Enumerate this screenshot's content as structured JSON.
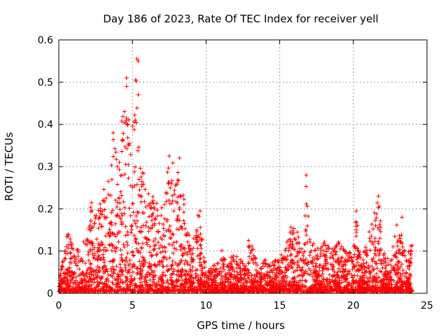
{
  "chart_data": {
    "type": "scatter",
    "title": "Day 186 of 2023, Rate Of TEC Index for receiver yell",
    "xlabel": "GPS time / hours",
    "ylabel": "ROTI / TECUs",
    "xlim": [
      0,
      25
    ],
    "ylim": [
      0,
      0.6
    ],
    "xticks": [
      0,
      5,
      10,
      15,
      20,
      25
    ],
    "yticks": [
      0,
      0.1,
      0.2,
      0.3,
      0.4,
      0.5,
      0.6
    ],
    "xtick_labels": [
      "0",
      "5",
      "10",
      "15",
      "20",
      "25"
    ],
    "ytick_labels": [
      "0",
      "0.1",
      "0.2",
      "0.3",
      "0.4",
      "0.5",
      "0.6"
    ],
    "grid": true,
    "marker": "+",
    "color": "#ff0000",
    "envelope": {
      "description": "approximate upper envelope of ROTI values per hour bin",
      "hours": [
        0,
        0.5,
        0.7,
        1,
        1.5,
        2,
        2.2,
        2.5,
        3,
        3.2,
        3.5,
        3.7,
        4,
        4.5,
        4.6,
        5,
        5.3,
        5.5,
        6,
        6.5,
        7,
        7.5,
        8,
        8.5,
        9,
        9.5,
        10,
        10.5,
        11,
        11.5,
        12,
        12.5,
        13,
        13.5,
        14,
        14.5,
        15,
        15.5,
        16,
        16.5,
        16.8,
        17,
        17.5,
        18,
        18.5,
        19,
        19.5,
        20,
        20.2,
        20.5,
        21,
        21.5,
        21.7,
        22,
        22.5,
        23,
        23.3,
        23.5,
        24
      ],
      "max_roti": [
        0.03,
        0.12,
        0.165,
        0.1,
        0.1,
        0.15,
        0.22,
        0.19,
        0.23,
        0.3,
        0.25,
        0.38,
        0.3,
        0.51,
        0.42,
        0.41,
        0.555,
        0.3,
        0.27,
        0.22,
        0.21,
        0.32,
        0.32,
        0.22,
        0.1,
        0.19,
        0.05,
        0.06,
        0.1,
        0.08,
        0.09,
        0.07,
        0.14,
        0.06,
        0.08,
        0.07,
        0.08,
        0.13,
        0.18,
        0.11,
        0.28,
        0.14,
        0.1,
        0.12,
        0.1,
        0.12,
        0.1,
        0.09,
        0.19,
        0.07,
        0.13,
        0.2,
        0.23,
        0.1,
        0.07,
        0.18,
        0.13,
        0.1,
        0.11
      ]
    },
    "notable_points": [
      {
        "x": 4.6,
        "y": 0.51
      },
      {
        "x": 4.6,
        "y": 0.49
      },
      {
        "x": 5.3,
        "y": 0.555
      },
      {
        "x": 5.4,
        "y": 0.55
      },
      {
        "x": 5.4,
        "y": 0.47
      },
      {
        "x": 4.6,
        "y": 0.415
      },
      {
        "x": 5.2,
        "y": 0.41
      },
      {
        "x": 3.7,
        "y": 0.38
      },
      {
        "x": 16.8,
        "y": 0.28
      },
      {
        "x": 21.7,
        "y": 0.23
      },
      {
        "x": 20.2,
        "y": 0.195
      },
      {
        "x": 23.3,
        "y": 0.18
      },
      {
        "x": 9.6,
        "y": 0.195
      },
      {
        "x": 7.5,
        "y": 0.325
      },
      {
        "x": 8.2,
        "y": 0.32
      }
    ]
  }
}
